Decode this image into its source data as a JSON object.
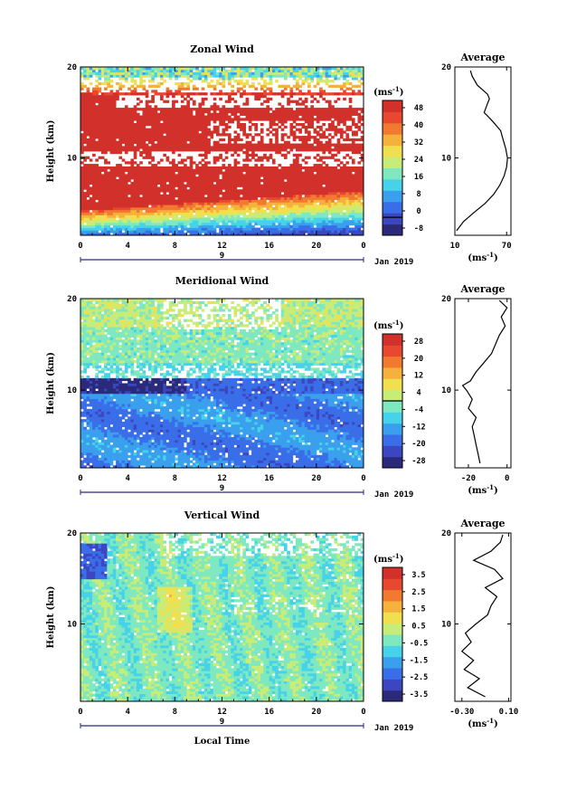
{
  "chart_data": [
    {
      "type": "heatmap",
      "title": "Zonal Wind",
      "ylabel": "Height (km)",
      "ylim": [
        1.5,
        20
      ],
      "xlim": [
        0,
        24
      ],
      "yticks": [
        10,
        20
      ],
      "xtick_labels": [
        "0",
        "4",
        "8",
        "12",
        "16",
        "20",
        "0"
      ],
      "day_marker": "9",
      "date_label": "Jan 2019",
      "colorbar": {
        "unit_base": "(ms",
        "unit_sup": "-1",
        "unit_close": ")",
        "tick_labels": [
          "48",
          "40",
          "32",
          "24",
          "16",
          "8",
          "0",
          "-8"
        ],
        "min": -8,
        "max": 52,
        "zero_line": 0
      },
      "profile_field": "zonal",
      "average": {
        "title": "Average",
        "xlabel_base": "(ms",
        "xlabel_sup": "-1",
        "xlabel_close": ")",
        "xlim": [
          10,
          75
        ],
        "xtick_labels": [
          "10",
          "70"
        ],
        "xticks": [
          10,
          70
        ],
        "heights": [
          2,
          3,
          4,
          5,
          6,
          7,
          8,
          9,
          10,
          11,
          12,
          13,
          14,
          15,
          16,
          16.5,
          17,
          18,
          19,
          19.6
        ],
        "values": [
          12,
          20,
          32,
          45,
          55,
          62,
          67,
          70,
          71,
          69,
          66,
          63,
          54,
          44,
          48,
          50,
          48,
          36,
          30,
          28
        ]
      }
    },
    {
      "type": "heatmap",
      "title": "Meridional Wind",
      "ylabel": "Height (km)",
      "ylim": [
        1.5,
        20
      ],
      "xlim": [
        0,
        24
      ],
      "yticks": [
        10,
        20
      ],
      "xtick_labels": [
        "0",
        "4",
        "8",
        "12",
        "16",
        "20",
        "0"
      ],
      "day_marker": "9",
      "date_label": "Jan 2019",
      "colorbar": {
        "unit_base": "(ms",
        "unit_sup": "-1",
        "unit_close": ")",
        "tick_labels": [
          "28",
          "20",
          "12",
          "4",
          "-4",
          "-12",
          "-20",
          "-28"
        ],
        "min": -32,
        "max": 32,
        "zero_line": 0
      },
      "profile_field": "meridional",
      "average": {
        "title": "Average",
        "xlabel_base": "(ms",
        "xlabel_sup": "-1",
        "xlabel_close": ")",
        "xlim": [
          -27,
          2
        ],
        "xtick_labels": [
          "-20",
          "0"
        ],
        "xticks": [
          -20,
          0
        ],
        "heights": [
          2,
          3,
          4,
          5,
          6,
          7,
          8,
          9,
          10,
          10.5,
          11,
          12,
          13,
          14,
          15,
          16,
          17,
          18,
          19,
          19.8
        ],
        "values": [
          -14,
          -15,
          -16,
          -17,
          -18,
          -16,
          -20,
          -18,
          -21,
          -23,
          -19,
          -16,
          -12,
          -8,
          -6,
          -4,
          -1,
          -3,
          0,
          -4
        ]
      }
    },
    {
      "type": "heatmap",
      "title": "Vertical Wind",
      "ylabel": "Height (km)",
      "xlabel": "Local Time",
      "ylim": [
        1.5,
        20
      ],
      "xlim": [
        0,
        24
      ],
      "yticks": [
        10,
        20
      ],
      "xtick_labels": [
        "0",
        "4",
        "8",
        "12",
        "16",
        "20",
        "0"
      ],
      "day_marker": "9",
      "date_label": "Jan 2019",
      "colorbar": {
        "unit_base": "(ms",
        "unit_sup": "-1",
        "unit_close": ")",
        "tick_labels": [
          "3.5",
          "2.5",
          "1.5",
          "0.5",
          "-0.5",
          "-1.5",
          "-2.5",
          "-3.5"
        ],
        "min": -4,
        "max": 4,
        "zero_line": null
      },
      "profile_field": "vertical",
      "average": {
        "title": "Average",
        "xlabel_base": "(ms",
        "xlabel_sup": "-1",
        "xlabel_close": ")",
        "xlim": [
          -0.36,
          0.12
        ],
        "xtick_labels": [
          "-0.30",
          "0.10"
        ],
        "xticks": [
          -0.3,
          0.1
        ],
        "heights": [
          2,
          3,
          4,
          5,
          6,
          7,
          8,
          9,
          10,
          11,
          12,
          13,
          14,
          15,
          16,
          17,
          18,
          19,
          19.8
        ],
        "values": [
          -0.1,
          -0.25,
          -0.15,
          -0.28,
          -0.2,
          -0.3,
          -0.22,
          -0.27,
          -0.18,
          -0.08,
          -0.05,
          0.0,
          -0.1,
          0.05,
          -0.02,
          -0.2,
          -0.05,
          0.03,
          0.05
        ]
      }
    }
  ]
}
